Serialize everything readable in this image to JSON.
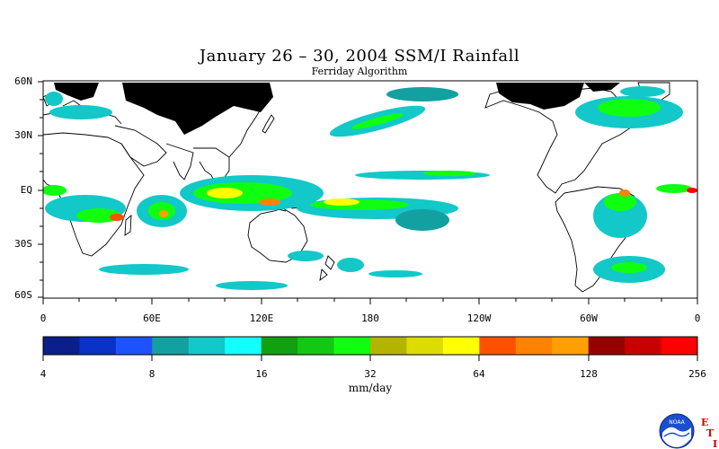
{
  "title": "January 26 – 30, 2004 SSM/I Rainfall",
  "subtitle": "Ferriday Algorithm",
  "lat_labels": [
    "60N",
    "30N",
    "EQ",
    "30S",
    "60S"
  ],
  "lon_labels": [
    "0",
    "60E",
    "120E",
    "180",
    "120W",
    "60W",
    "0"
  ],
  "colorbar": {
    "unit_label": "mm/day",
    "tick_labels": [
      "4",
      "8",
      "16",
      "32",
      "64",
      "128",
      "256"
    ],
    "colors": [
      "#0a1f8a",
      "#0a31c8",
      "#1e52ff",
      "#13a0a0",
      "#12c8c8",
      "#12ffff",
      "#10a010",
      "#12c812",
      "#10ff10",
      "#b4b400",
      "#dcdc00",
      "#ffff00",
      "#ff5000",
      "#ff8200",
      "#ffa000",
      "#960000",
      "#c80000",
      "#ff0000"
    ]
  },
  "logo": {
    "name": "NOAA",
    "side_letters": [
      "E",
      "T",
      "I"
    ]
  }
}
